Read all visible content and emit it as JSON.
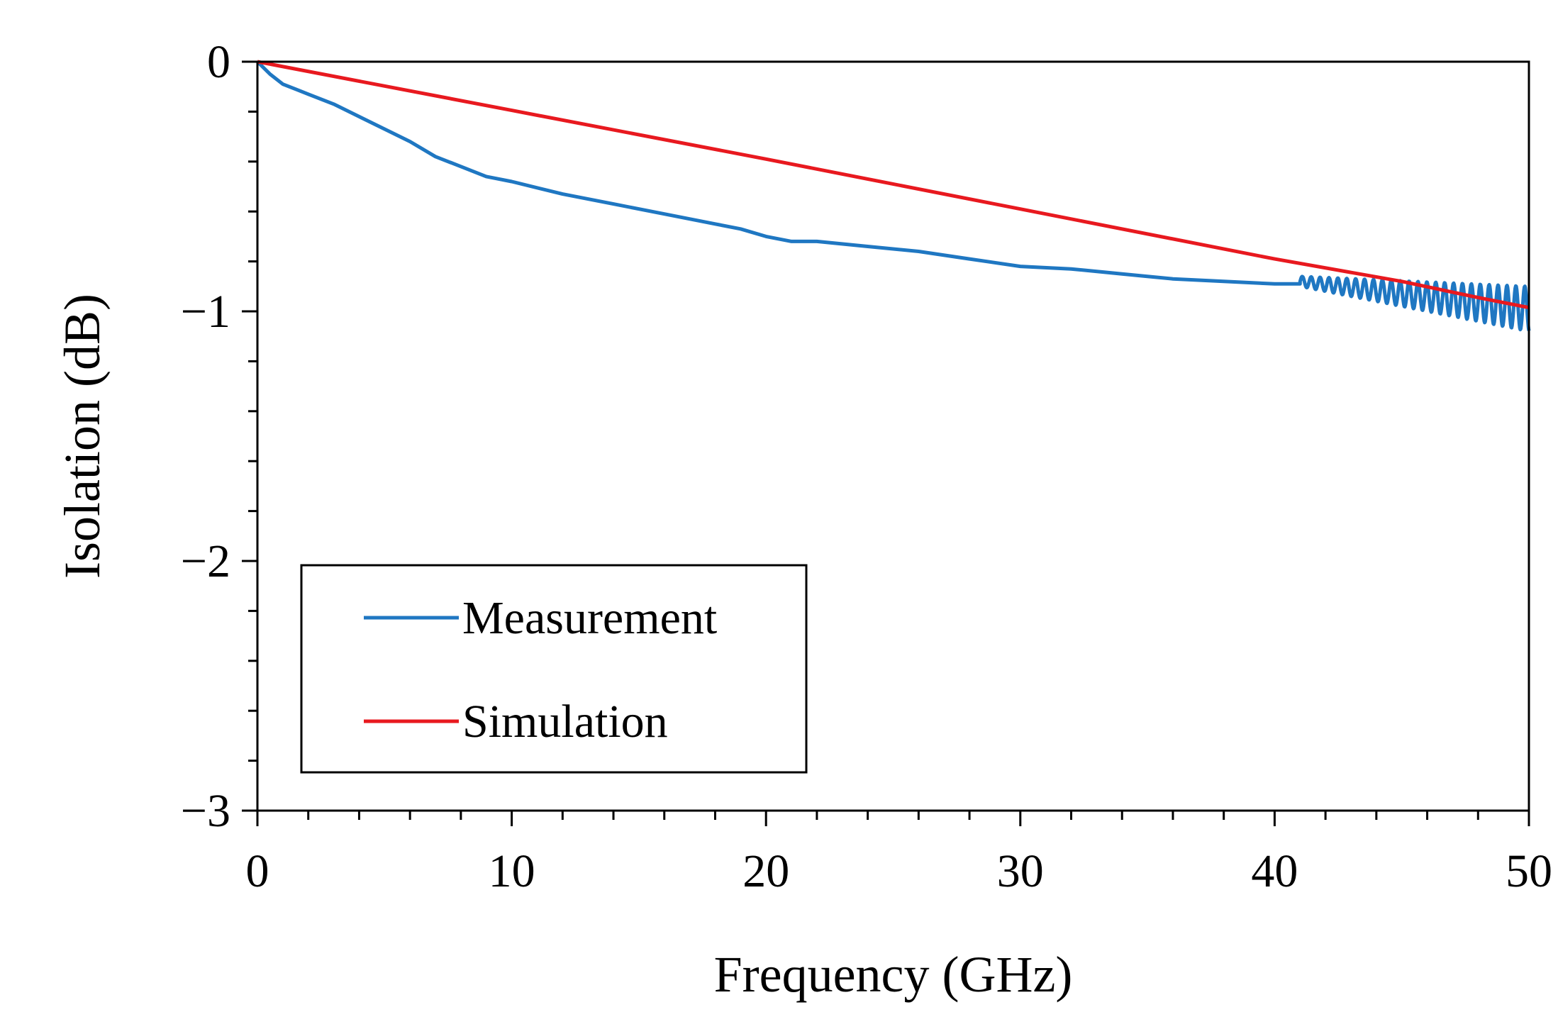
{
  "chart_data": {
    "type": "line",
    "title": "",
    "xlabel": "Frequency (GHz)",
    "ylabel": "Isolation (dB)",
    "xlim": [
      0,
      50
    ],
    "ylim": [
      -3,
      0
    ],
    "xticks": [
      0,
      10,
      20,
      30,
      40,
      50
    ],
    "xtick_labels": [
      "0",
      "10",
      "20",
      "30",
      "40",
      "50"
    ],
    "yticks": [
      0,
      -1,
      -2,
      -3
    ],
    "ytick_labels": [
      "0",
      "−1",
      "−2",
      "−3"
    ],
    "x_minor_step": 2,
    "y_minor_step": 0.2,
    "grid": false,
    "legend_position": "bottom-left",
    "series": [
      {
        "name": "Measurement",
        "color": "#1f77c2",
        "x": [
          0,
          0.5,
          1,
          1.5,
          2,
          3,
          4,
          5,
          6,
          7,
          8,
          9,
          10,
          12,
          14,
          16,
          18,
          19,
          20,
          21,
          22,
          24,
          26,
          28,
          30,
          32,
          34,
          35,
          36,
          38,
          40,
          41
        ],
        "y": [
          0,
          -0.05,
          -0.09,
          -0.11,
          -0.13,
          -0.17,
          -0.22,
          -0.27,
          -0.32,
          -0.38,
          -0.42,
          -0.46,
          -0.48,
          -0.53,
          -0.57,
          -0.61,
          -0.65,
          -0.67,
          -0.7,
          -0.72,
          -0.72,
          -0.74,
          -0.76,
          -0.79,
          -0.82,
          -0.83,
          -0.85,
          -0.86,
          -0.87,
          -0.88,
          -0.89,
          -0.89
        ],
        "ripple": {
          "x_start": 41,
          "x_end": 50,
          "center_start": -0.88,
          "center_end": -0.99,
          "amp_start": 0.02,
          "amp_end": 0.09,
          "period": 0.35
        }
      },
      {
        "name": "Simulation",
        "color": "#e8191f",
        "x": [
          0,
          10,
          20,
          30,
          40,
          45,
          48,
          50
        ],
        "y": [
          0,
          -0.195,
          -0.39,
          -0.59,
          -0.79,
          -0.88,
          -0.945,
          -0.985
        ]
      }
    ]
  }
}
